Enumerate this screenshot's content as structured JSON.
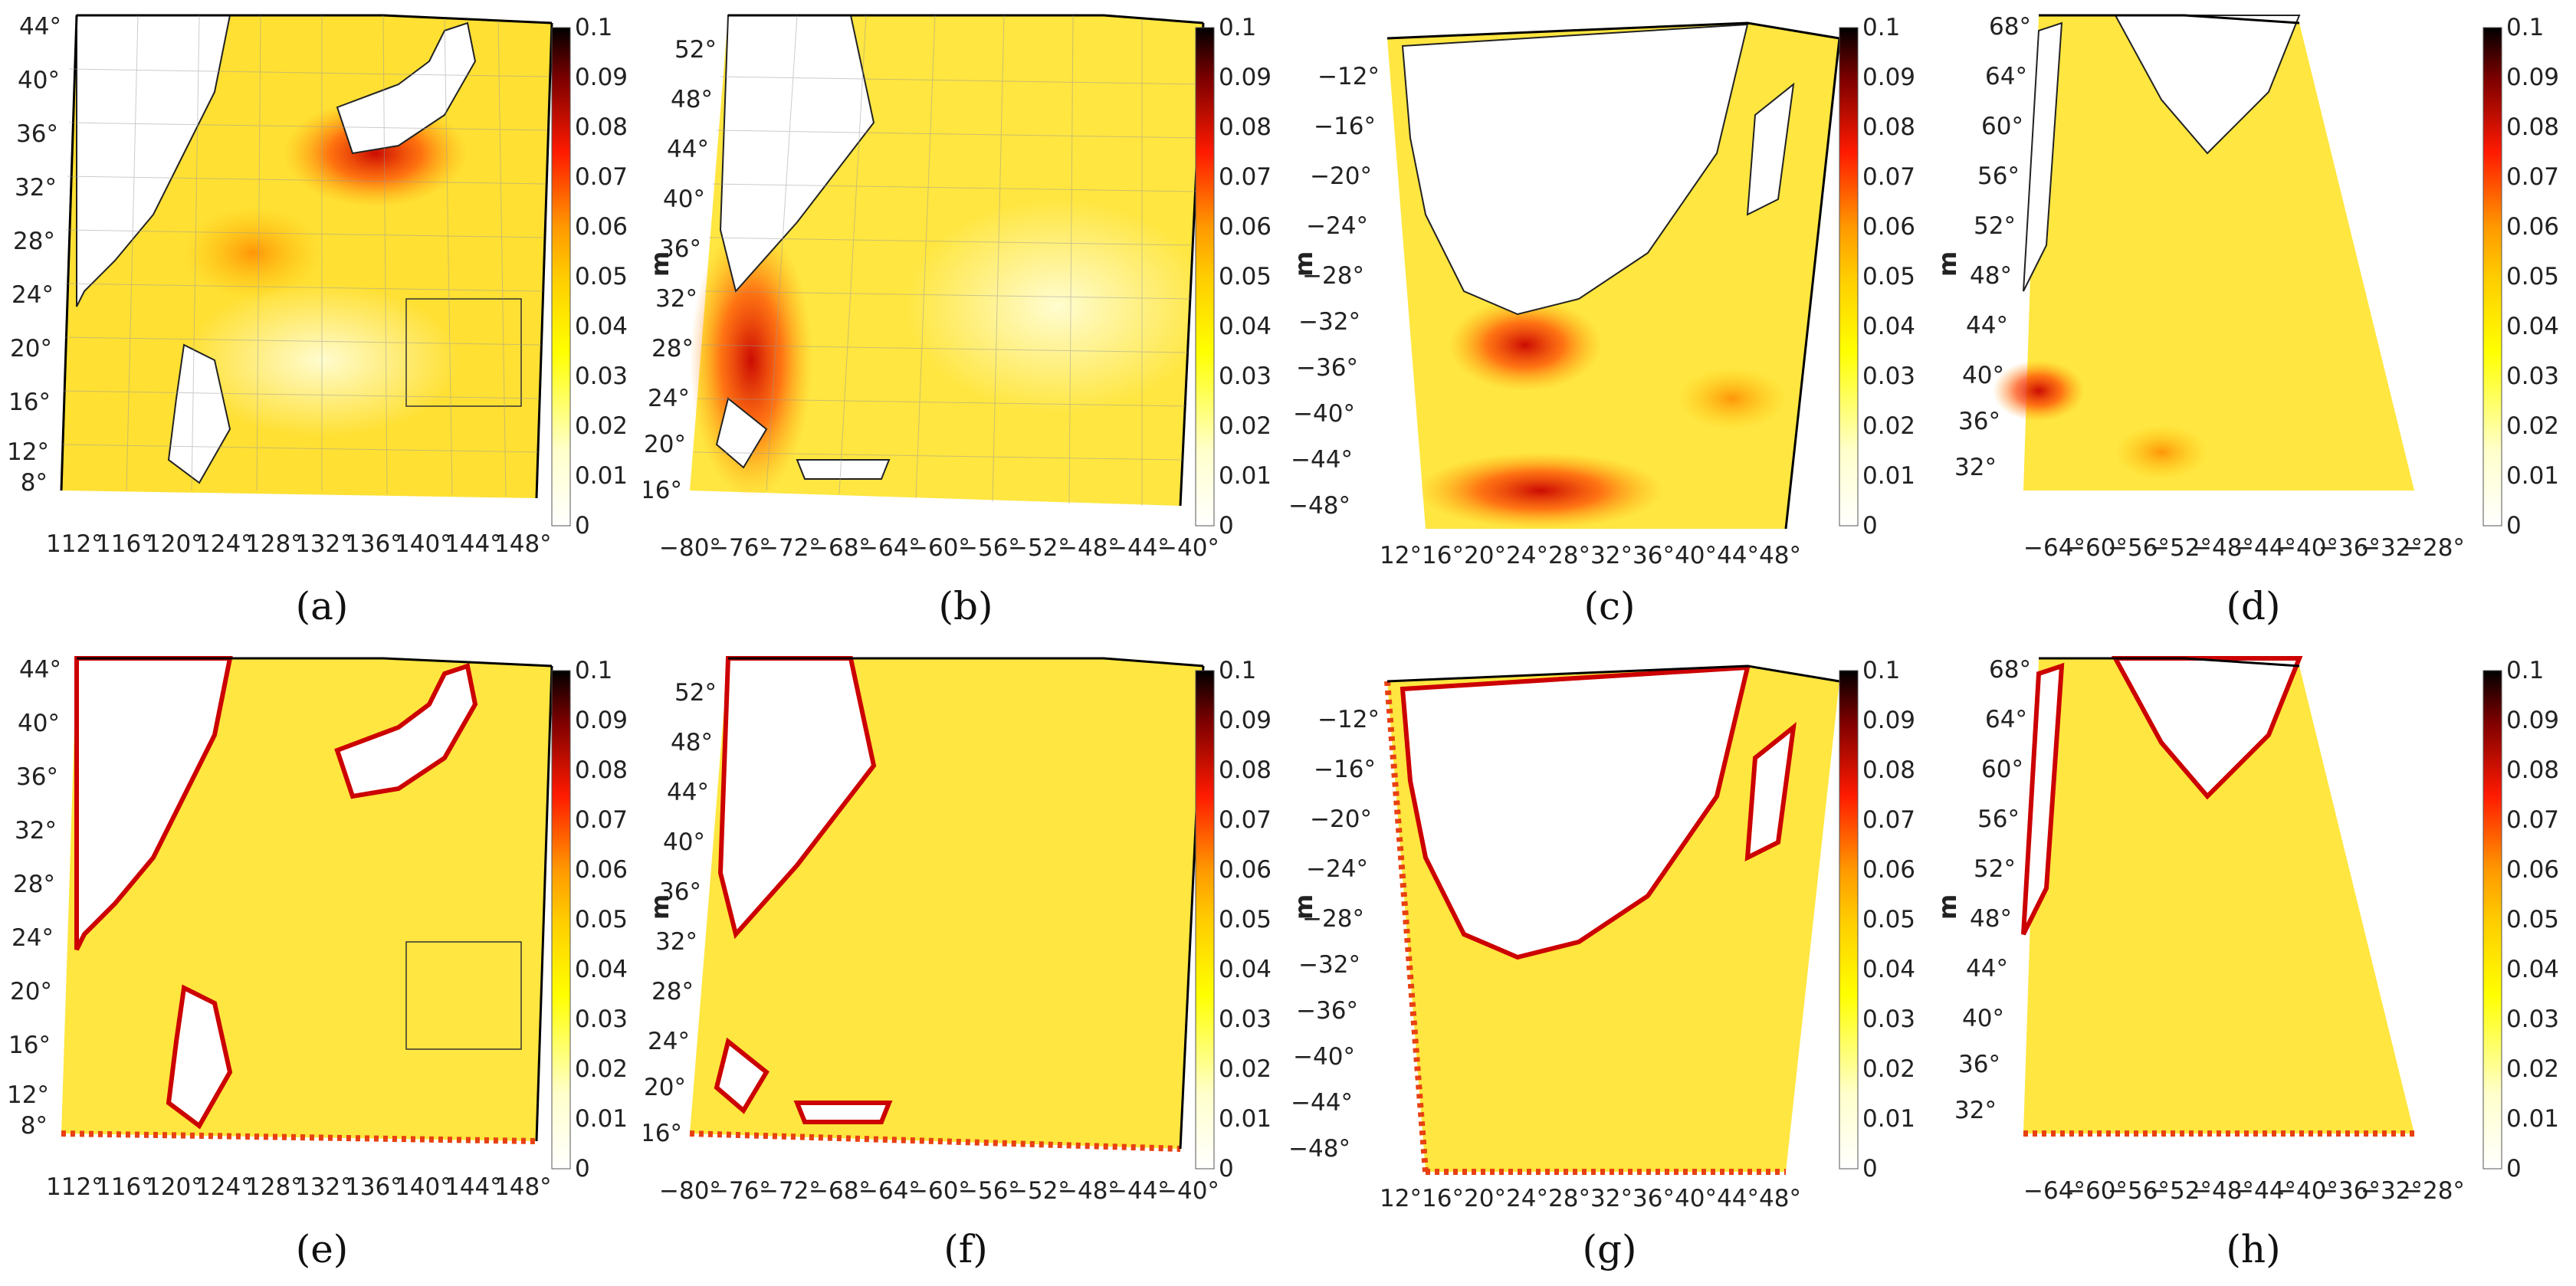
{
  "colorbar": {
    "ticks": [
      "0.1",
      "0.09",
      "0.08",
      "0.07",
      "0.06",
      "0.05",
      "0.04",
      "0.03",
      "0.02",
      "0.01",
      "0"
    ],
    "unit": "m",
    "colors": {
      "top": "#000000",
      "dark_red": "#7a0000",
      "red": "#ff1a00",
      "orange": "#ff9900",
      "yellow": "#ffff00",
      "pale": "#ffffcc",
      "white": "#ffffff"
    }
  },
  "panels": [
    {
      "label": "(a)",
      "lat": [
        "44°",
        "40°",
        "36°",
        "32°",
        "28°",
        "24°",
        "20°",
        "16°",
        "12°",
        "8°"
      ],
      "lon": [
        "112°",
        "116°",
        "120°",
        "124°",
        "128°",
        "132°",
        "136°",
        "140°",
        "144°",
        "148°"
      ]
    },
    {
      "label": "(b)",
      "lat": [
        "52°",
        "48°",
        "44°",
        "40°",
        "36°",
        "32°",
        "28°",
        "24°",
        "20°",
        "16°"
      ],
      "lon": [
        "−80°",
        "−76°",
        "−72°",
        "−68°",
        "−64°",
        "−60°",
        "−56°",
        "−52°",
        "−48°",
        "−44°",
        "−40°"
      ]
    },
    {
      "label": "(c)",
      "lat": [
        "−12°",
        "−16°",
        "−20°",
        "−24°",
        "−28°",
        "−32°",
        "−36°",
        "−40°",
        "−44°",
        "−48°"
      ],
      "lon": [
        "12°",
        "16°",
        "20°",
        "24°",
        "28°",
        "32°",
        "36°",
        "40°",
        "44°",
        "48°"
      ]
    },
    {
      "label": "(d)",
      "lat": [
        "68°",
        "64°",
        "60°",
        "56°",
        "52°",
        "48°",
        "44°",
        "40°",
        "36°",
        "32°"
      ],
      "lon": [
        "−64°",
        "−60°",
        "−56°",
        "−52°",
        "−48°",
        "−44°",
        "−40°",
        "−36°",
        "−32°",
        "−28°"
      ]
    },
    {
      "label": "(e)",
      "lat": [
        "44°",
        "40°",
        "36°",
        "32°",
        "28°",
        "24°",
        "20°",
        "16°",
        "12°",
        "8°"
      ],
      "lon": [
        "112°",
        "116°",
        "120°",
        "124°",
        "128°",
        "132°",
        "136°",
        "140°",
        "144°",
        "148°"
      ]
    },
    {
      "label": "(f)",
      "lat": [
        "52°",
        "48°",
        "44°",
        "40°",
        "36°",
        "32°",
        "28°",
        "24°",
        "20°",
        "16°"
      ],
      "lon": [
        "−80°",
        "−76°",
        "−72°",
        "−68°",
        "−64°",
        "−60°",
        "−56°",
        "−52°",
        "−48°",
        "−44°",
        "−40°"
      ]
    },
    {
      "label": "(g)",
      "lat": [
        "−12°",
        "−16°",
        "−20°",
        "−24°",
        "−28°",
        "−32°",
        "−36°",
        "−40°",
        "−44°",
        "−48°"
      ],
      "lon": [
        "12°",
        "16°",
        "20°",
        "24°",
        "28°",
        "32°",
        "36°",
        "40°",
        "44°",
        "48°"
      ]
    },
    {
      "label": "(h)",
      "lat": [
        "68°",
        "64°",
        "60°",
        "56°",
        "52°",
        "48°",
        "44°",
        "40°",
        "36°",
        "32°"
      ],
      "lon": [
        "−64°",
        "−60°",
        "−56°",
        "−52°",
        "−48°",
        "−44°",
        "−40°",
        "−36°",
        "−32°",
        "−28°"
      ]
    }
  ]
}
